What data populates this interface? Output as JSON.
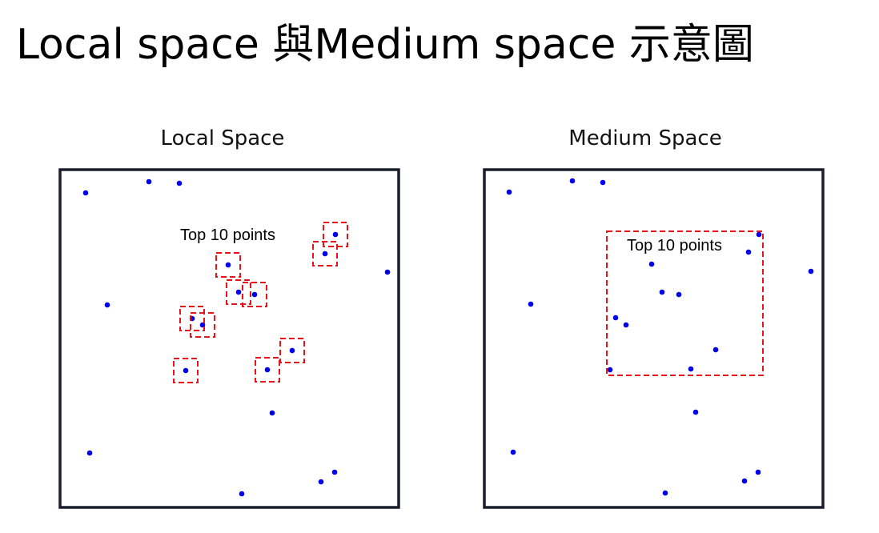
{
  "title": "Local space 與Medium space 示意圖",
  "panels": [
    {
      "id": "local",
      "title": "Local Space",
      "annotation": "Top 10  points"
    },
    {
      "id": "medium",
      "title": "Medium Space",
      "annotation": "Top 10 points"
    }
  ],
  "colors": {
    "point": "#0000ee",
    "selection": "#e8121b",
    "frame": "#1a1e2c"
  }
}
